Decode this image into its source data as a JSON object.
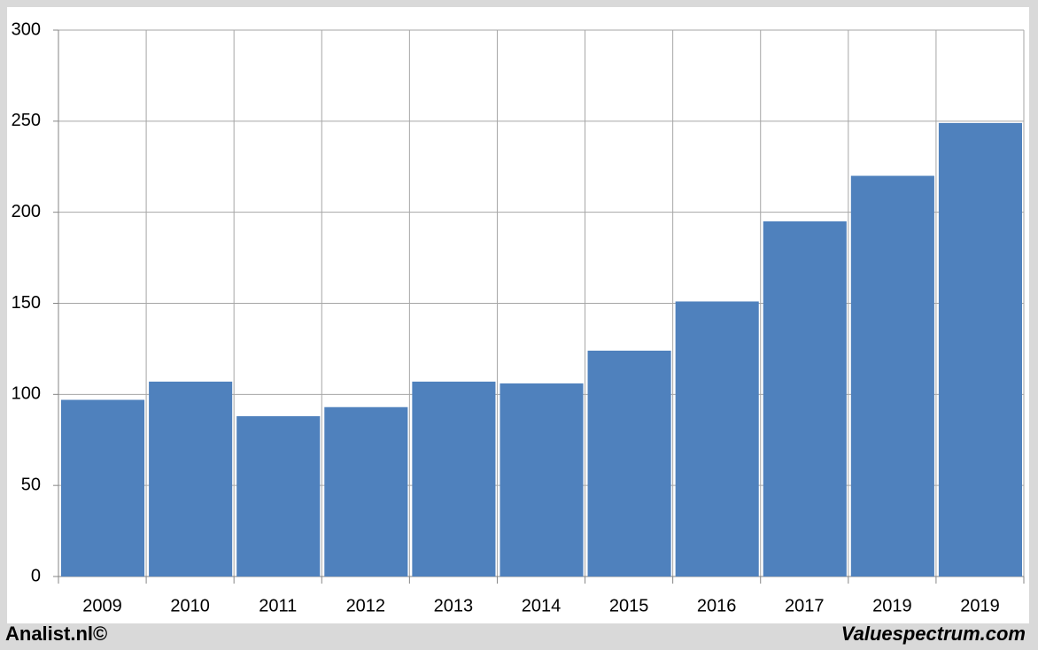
{
  "chart_data": {
    "type": "bar",
    "categories": [
      "2009",
      "2010",
      "2011",
      "2012",
      "2013",
      "2014",
      "2015",
      "2016",
      "2017",
      "2019",
      "2019"
    ],
    "values": [
      97,
      107,
      88,
      93,
      107,
      106,
      124,
      151,
      195,
      220,
      249
    ],
    "color": "#4f81bd",
    "ylim": [
      0,
      300
    ],
    "yticks": [
      0,
      50,
      100,
      150,
      200,
      250,
      300
    ],
    "grid": true,
    "footer_left": "Analist.nl©",
    "footer_right": "Valuespectrum.com"
  }
}
